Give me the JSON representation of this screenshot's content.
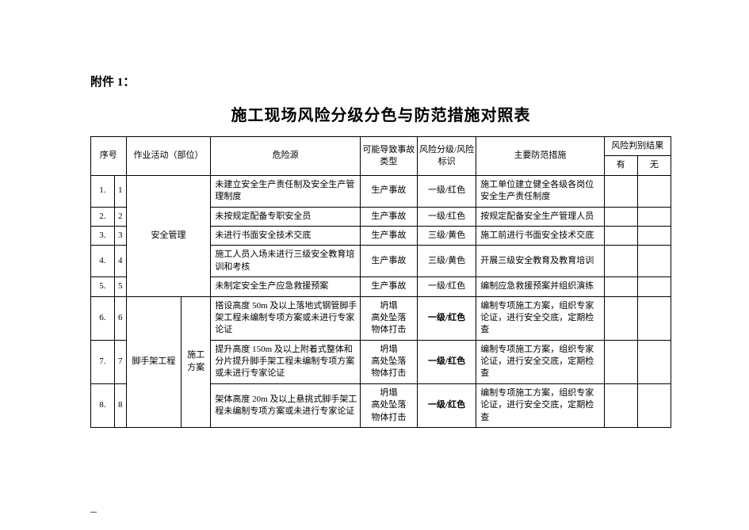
{
  "attachment_label": "附件 1：",
  "title": "施工现场风险分级分色与防范措施对照表",
  "headers": {
    "seq": "序号",
    "activity": "作业活动（部位）",
    "hazard": "危险源",
    "accident_type": "可能导致事故类型",
    "risk_level": "风险分级/风险标识",
    "measures": "主要防范措施",
    "result": "风险判别结果",
    "result_you": "有",
    "result_wu": "无"
  },
  "groups": [
    {
      "activity_label": "安全管理",
      "activity_sublabel": "",
      "rows": [
        {
          "seq": "1.",
          "subseq": "1",
          "hazard": "未建立安全生产责任制及安全生产管理制度",
          "accident": "生产事故",
          "risk": "一级/红色",
          "risk_bold": false,
          "measures": "施工单位建立健全各级各岗位安全生产责任制度"
        },
        {
          "seq": "2.",
          "subseq": "2",
          "hazard": "未按规定配备专职安全员",
          "accident": "生产事故",
          "risk": "一级/红色",
          "risk_bold": false,
          "measures": "按规定配备安全生产管理人员"
        },
        {
          "seq": "3.",
          "subseq": "3",
          "hazard": "未进行书面安全技术交底",
          "accident": "生产事故",
          "risk": "三级/黄色",
          "risk_bold": false,
          "measures": "施工前进行书面安全技术交底"
        },
        {
          "seq": "4.",
          "subseq": "4",
          "hazard": "施工人员入场未进行三级安全教育培训和考核",
          "accident": "生产事故",
          "risk": "三级/黄色",
          "risk_bold": false,
          "measures": "开展三级安全教育及教育培训"
        },
        {
          "seq": "5.",
          "subseq": "5",
          "hazard": "未制定安全生产应急救援预案",
          "accident": "生产事故",
          "risk": "一级/红色",
          "risk_bold": false,
          "measures": "编制应急救援预案并组织演练"
        }
      ]
    },
    {
      "activity_label": "脚手架工程",
      "activity_sublabel": "施工方案",
      "rows": [
        {
          "seq": "6.",
          "subseq": "6",
          "hazard": "搭设高度 50m 及以上落地式钢管脚手架工程未编制专项方案或未进行专家论证",
          "accident": "坍塌\n高处坠落\n物体打击",
          "risk": "一级/红色",
          "risk_bold": true,
          "measures": "编制专项施工方案，组织专家论证，进行安全交底，定期检查"
        },
        {
          "seq": "7.",
          "subseq": "7",
          "hazard": "提升高度 150m 及以上附着式整体和分片提升脚手架工程未编制专项方案或未进行专家论证",
          "accident": "坍塌\n高处坠落\n物体打击",
          "risk": "一级/红色",
          "risk_bold": true,
          "measures": "编制专项施工方案，组织专家论证，进行安全交底，定期检查"
        },
        {
          "seq": "8.",
          "subseq": "8",
          "hazard": "架体高度 20m 及以上悬挑式脚手架工程未编制专项方案或未进行专家论证",
          "accident": "坍塌\n高处坠落\n物体打击",
          "risk": "一级/红色",
          "risk_bold": true,
          "measures": "编制专项施工方案，组织专家论证，进行安全交底，定期检查"
        }
      ]
    }
  ]
}
